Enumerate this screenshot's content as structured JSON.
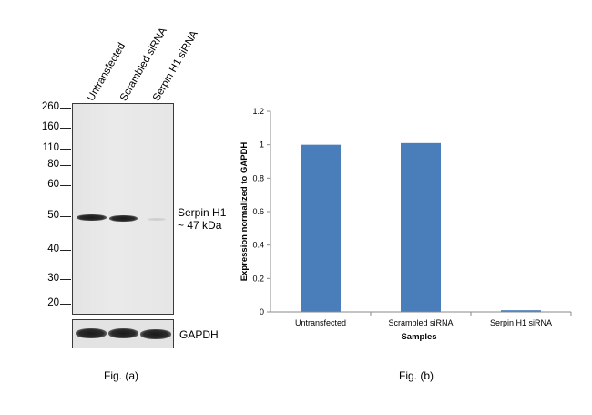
{
  "blot": {
    "lanes": [
      "Untransfected",
      "Scrambled siRNA",
      "Serpin H1 siRNA"
    ],
    "mw_markers": [
      "260",
      "160",
      "110",
      "80",
      "60",
      "50",
      "40",
      "30",
      "20"
    ],
    "target_label": "Serpin H1",
    "target_size": "~ 47 kDa",
    "loading_label": "GAPDH",
    "figure_label": "Fig. (a)"
  },
  "chart_data": {
    "type": "bar",
    "categories": [
      "Untransfected",
      "Scrambled siRNA",
      "Serpin H1 siRNA"
    ],
    "values": [
      1.0,
      1.01,
      0.01
    ],
    "xlabel": "Samples",
    "ylabel": "Expression normalized to GAPDH",
    "ylim": [
      0,
      1.2
    ],
    "yticks": [
      "0",
      "0.2",
      "0.4",
      "0.6",
      "0.8",
      "1",
      "1.2"
    ],
    "grid": false,
    "bar_color": "#4a7ebb",
    "figure_label": "Fig. (b)"
  }
}
